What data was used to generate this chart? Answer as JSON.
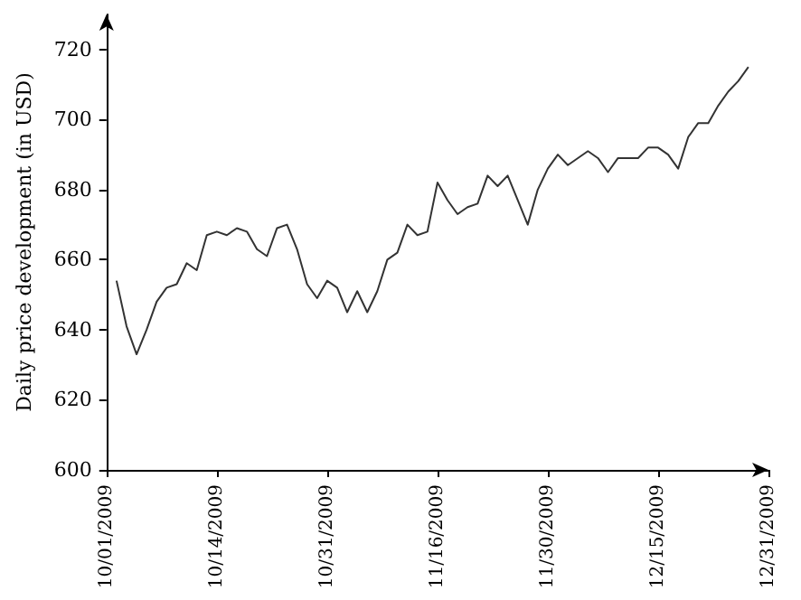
{
  "chart_data": {
    "type": "line",
    "ylabel": "Daily price development (in USD)",
    "categories": [
      "10/01/2009",
      null,
      null,
      null,
      null,
      null,
      null,
      null,
      null,
      null,
      null,
      "10/14/2009",
      null,
      null,
      null,
      null,
      null,
      null,
      null,
      null,
      null,
      null,
      "10/31/2009",
      null,
      null,
      null,
      null,
      null,
      null,
      null,
      null,
      null,
      null,
      "11/16/2009",
      null,
      null,
      null,
      null,
      null,
      null,
      null,
      null,
      null,
      null,
      "11/30/2009",
      null,
      null,
      null,
      null,
      null,
      null,
      null,
      null,
      null,
      null,
      "12/15/2009",
      null,
      null,
      null,
      null,
      null,
      null,
      null,
      null,
      null,
      null,
      "12/31/2009"
    ],
    "series": [
      {
        "color": "#333333",
        "values": [
          null,
          654,
          641,
          633,
          640,
          648,
          652,
          653,
          659,
          657,
          667,
          668,
          667,
          669,
          668,
          663,
          661,
          669,
          670,
          663,
          653,
          649,
          654,
          652,
          645,
          651,
          645,
          651,
          660,
          662,
          670,
          667,
          668,
          682,
          677,
          673,
          675,
          676,
          684,
          681,
          684,
          677,
          670,
          680,
          686,
          690,
          687,
          689,
          691,
          689,
          685,
          689,
          689,
          689,
          692,
          692,
          690,
          686,
          695,
          699,
          699,
          704,
          708,
          711,
          715,
          null,
          null
        ]
      }
    ],
    "ylim": [
      600,
      730
    ],
    "yticks": [
      600,
      620,
      640,
      660,
      680,
      700,
      720
    ],
    "marker": "none",
    "line_style": "solid"
  }
}
